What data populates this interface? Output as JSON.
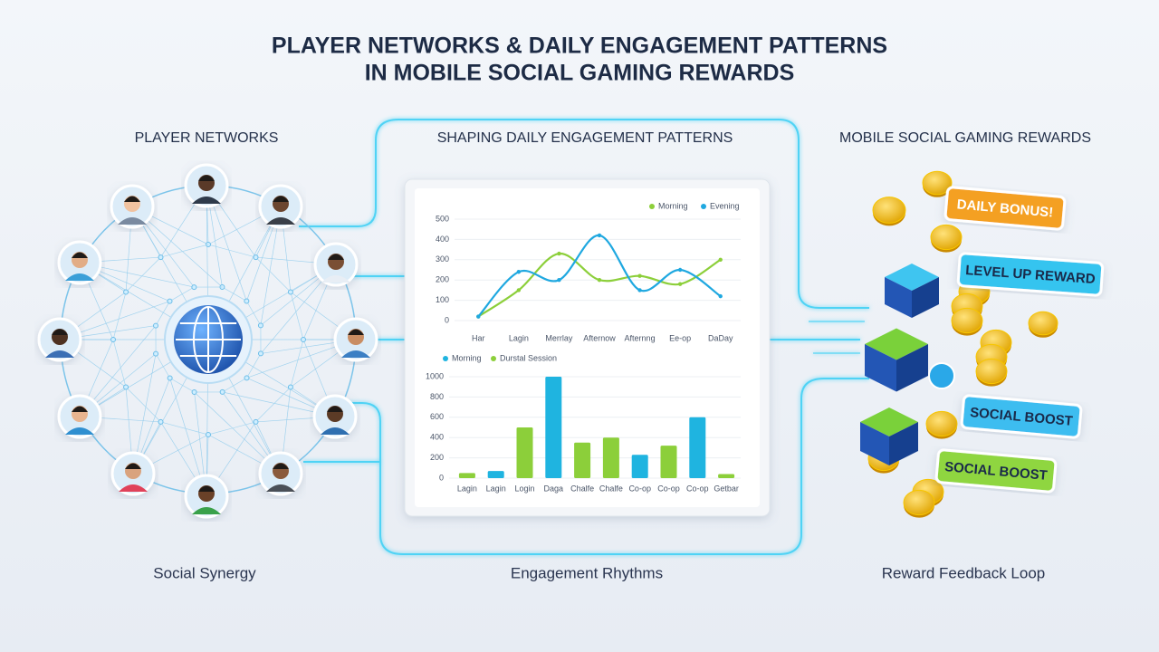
{
  "header": {
    "title": [
      "PLAYER NETWORKS & DAILY ENGAGEMENT PATTERNS",
      "IN MOBILE SOCIAL GAMING REWARDS"
    ]
  },
  "sections": [
    {
      "heading": "PLAYER NETWORKS",
      "caption": "Social Synergy"
    },
    {
      "heading": "SHAPING DAILY ENGAGEMENT PATTERNS",
      "caption": "Engagement Rhythms"
    },
    {
      "heading": "MOBILE SOCIAL GAMING REWARDS",
      "caption": "Reward Feedback Loop"
    }
  ],
  "chart_data": [
    {
      "type": "line",
      "categories": [
        "Har",
        "Lagin",
        "Merrlay",
        "Afternow",
        "Afternng",
        "Ee-op",
        "DaDay"
      ],
      "series": [
        {
          "name": "Morning",
          "color": "#8ccf3a",
          "values": [
            20,
            150,
            330,
            200,
            220,
            180,
            300
          ]
        },
        {
          "name": "Evening",
          "color": "#1fa8e0",
          "values": [
            20,
            240,
            200,
            420,
            150,
            250,
            120
          ]
        }
      ],
      "ylim": [
        0,
        500
      ],
      "yticks": [
        0,
        100,
        200,
        300,
        400,
        500
      ],
      "grid": true
    },
    {
      "type": "bar",
      "categories": [
        "Lagin",
        "Lagin",
        "Login",
        "Daga",
        "Chalfe",
        "Chalfe",
        "Co-op",
        "Co-op",
        "Co-op",
        "Getbar"
      ],
      "series": [
        {
          "name": "Morning",
          "color": "#1fb4e0",
          "values": [
            null,
            70,
            null,
            1000,
            null,
            null,
            230,
            null,
            600,
            null
          ]
        },
        {
          "name": "Durstal Session",
          "color": "#8ccf3a",
          "values": [
            50,
            null,
            500,
            null,
            350,
            400,
            null,
            320,
            null,
            40
          ]
        }
      ],
      "ylim": [
        0,
        1000
      ],
      "yticks": [
        0,
        200,
        400,
        600,
        800,
        1000
      ],
      "grid": true
    }
  ],
  "rewards": [
    "DAILY BONUS!",
    "LEVEL UP REWARD",
    "SOCIAL BOOST",
    "SOCIAL BOOST"
  ]
}
